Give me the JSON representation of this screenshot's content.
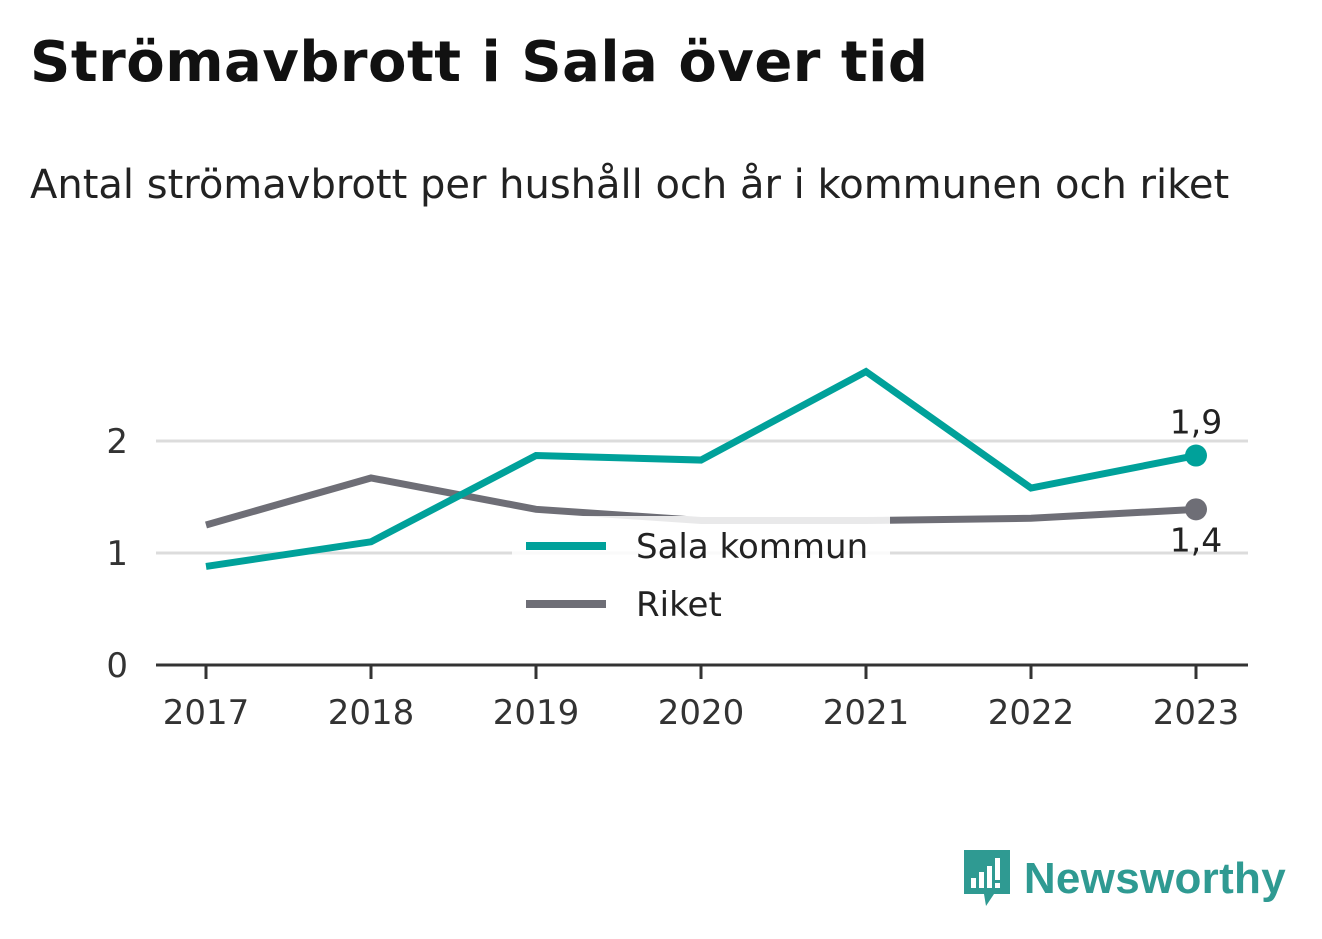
{
  "header": {
    "title": "Strömavbrott i Sala över tid",
    "subtitle": "Antal strömavbrott per hushåll och år i kommunen och riket"
  },
  "branding": {
    "name": "Newsworthy",
    "icon": "bar-chart-speech-bubble-icon",
    "color": "#2f9a92"
  },
  "chart_data": {
    "type": "line",
    "title": "Strömavbrott i Sala över tid",
    "subtitle": "Antal strömavbrott per hushåll och år i kommunen och riket",
    "xlabel": "",
    "ylabel": "",
    "categories": [
      "2017",
      "2018",
      "2019",
      "2020",
      "2021",
      "2022",
      "2023"
    ],
    "yticks": [
      0,
      1,
      2
    ],
    "ytick_labels": [
      "0",
      "1",
      "2"
    ],
    "ylim": [
      0,
      2.6
    ],
    "grid": true,
    "legend_position": "center",
    "series": [
      {
        "name": "Sala kommun",
        "color": "#00a19a",
        "values": [
          0.88,
          1.1,
          1.87,
          1.83,
          2.62,
          1.58,
          1.87
        ],
        "end_label": "1,9"
      },
      {
        "name": "Riket",
        "color": "#6e6e76",
        "values": [
          1.25,
          1.67,
          1.39,
          1.29,
          1.29,
          1.31,
          1.39
        ],
        "end_label": "1,4"
      }
    ]
  }
}
